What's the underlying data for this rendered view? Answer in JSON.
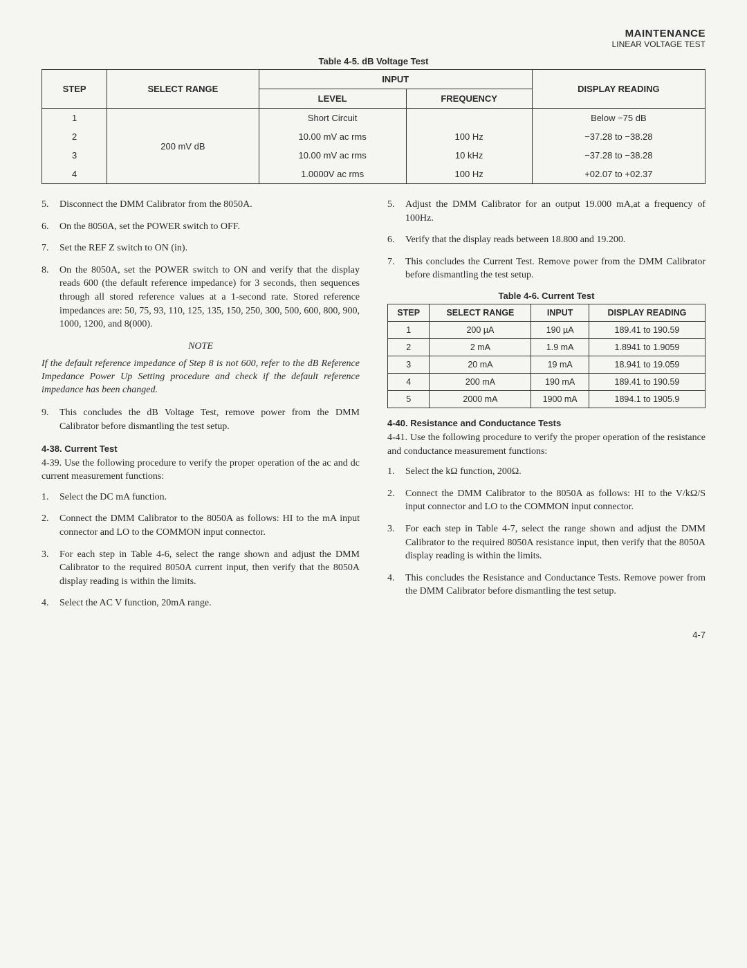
{
  "header": {
    "main": "MAINTENANCE",
    "sub": "LINEAR VOLTAGE TEST"
  },
  "table45": {
    "caption": "Table 4-5. dB Voltage Test",
    "headers": {
      "step": "STEP",
      "range": "SELECT RANGE",
      "input": "INPUT",
      "level": "LEVEL",
      "freq": "FREQUENCY",
      "display": "DISPLAY READING"
    },
    "range_val": "200 mV dB",
    "rows": [
      {
        "step": "1",
        "level": "Short Circuit",
        "freq": "",
        "display": "Below −75 dB"
      },
      {
        "step": "2",
        "level": "10.00 mV ac rms",
        "freq": "100 Hz",
        "display": "−37.28 to −38.28"
      },
      {
        "step": "3",
        "level": "10.00 mV ac rms",
        "freq": "10 kHz",
        "display": "−37.28 to −38.28"
      },
      {
        "step": "4",
        "level": "1.0000V ac rms",
        "freq": "100 Hz",
        "display": "+02.07 to +02.37"
      }
    ]
  },
  "left": {
    "list1": [
      {
        "n": "5.",
        "t": "Disconnect the DMM Calibrator from the 8050A."
      },
      {
        "n": "6.",
        "t": "On the 8050A, set the POWER switch to OFF."
      },
      {
        "n": "7.",
        "t": "Set the REF Z switch to ON (in)."
      },
      {
        "n": "8.",
        "t": "On the 8050A, set the POWER switch to ON and verify that the display reads 600 (the default reference impedance) for 3 seconds, then sequences through all stored reference values at a 1-second rate. Stored reference impedances are: 50, 75, 93, 110, 125, 135, 150, 250, 300, 500, 600, 800, 900, 1000, 1200, and 8(000)."
      }
    ],
    "note_label": "NOTE",
    "note": "If the default reference impedance of Step 8 is not 600, refer to the dB Reference Impedance Power Up Setting procedure and check if the default reference impedance has been changed.",
    "list2": [
      {
        "n": "9.",
        "t": "This concludes the dB Voltage Test, remove power from the DMM Calibrator before dismantling the test setup."
      }
    ],
    "sect438": "4-38.  Current Test",
    "para439": "4-39.   Use the following procedure to verify the proper operation of the ac and dc current measurement functions:",
    "list3": [
      {
        "n": "1.",
        "t": "Select the DC mA function."
      },
      {
        "n": "2.",
        "t": "Connect the DMM Calibrator to the 8050A as follows: HI to the mA input connector and LO to the COMMON input connector."
      },
      {
        "n": "3.",
        "t": "For each step in Table 4-6, select the range shown and adjust the DMM Calibrator to the required 8050A current input, then verify that the 8050A display reading is within the limits."
      },
      {
        "n": "4.",
        "t": "Select the AC V function, 20mA range."
      }
    ]
  },
  "right": {
    "list1": [
      {
        "n": "5.",
        "t": "Adjust the DMM Calibrator for an output 19.000 mA,at a frequency of 100Hz."
      },
      {
        "n": "6.",
        "t": "Verify that the display reads between 18.800 and 19.200."
      },
      {
        "n": "7.",
        "t": "This concludes the Current Test. Remove power from the DMM Calibrator before dismantling the test setup."
      }
    ],
    "table46": {
      "caption": "Table 4-6. Current Test",
      "headers": {
        "step": "STEP",
        "range": "SELECT RANGE",
        "input": "INPUT",
        "display": "DISPLAY READING"
      },
      "rows": [
        {
          "step": "1",
          "range": "200 µA",
          "input": "190 µA",
          "display": "189.41 to 190.59"
        },
        {
          "step": "2",
          "range": "2 mA",
          "input": "1.9 mA",
          "display": "1.8941 to 1.9059"
        },
        {
          "step": "3",
          "range": "20 mA",
          "input": "19 mA",
          "display": "18.941 to 19.059"
        },
        {
          "step": "4",
          "range": "200 mA",
          "input": "190 mA",
          "display": "189.41 to 190.59"
        },
        {
          "step": "5",
          "range": "2000 mA",
          "input": "1900 mA",
          "display": "1894.1 to 1905.9"
        }
      ]
    },
    "sect440": "4-40.  Resistance and Conductance Tests",
    "para441": "4-41.   Use the following procedure to verify the proper operation of the resistance and conductance measurement functions:",
    "list2": [
      {
        "n": "1.",
        "t": "Select the kΩ function, 200Ω."
      },
      {
        "n": "2.",
        "t": "Connect the DMM Calibrator to the 8050A as follows: HI to the V/kΩ/S input connector and LO to the COMMON input connector."
      },
      {
        "n": "3.",
        "t": "For each step in Table 4-7, select the range shown and adjust the DMM Calibrator to the required 8050A resistance input, then verify that the 8050A display reading is within the limits."
      },
      {
        "n": "4.",
        "t": "This concludes the Resistance and Conductance Tests. Remove power from the DMM Calibrator before dismantling the test setup."
      }
    ]
  },
  "page_num": "4-7"
}
